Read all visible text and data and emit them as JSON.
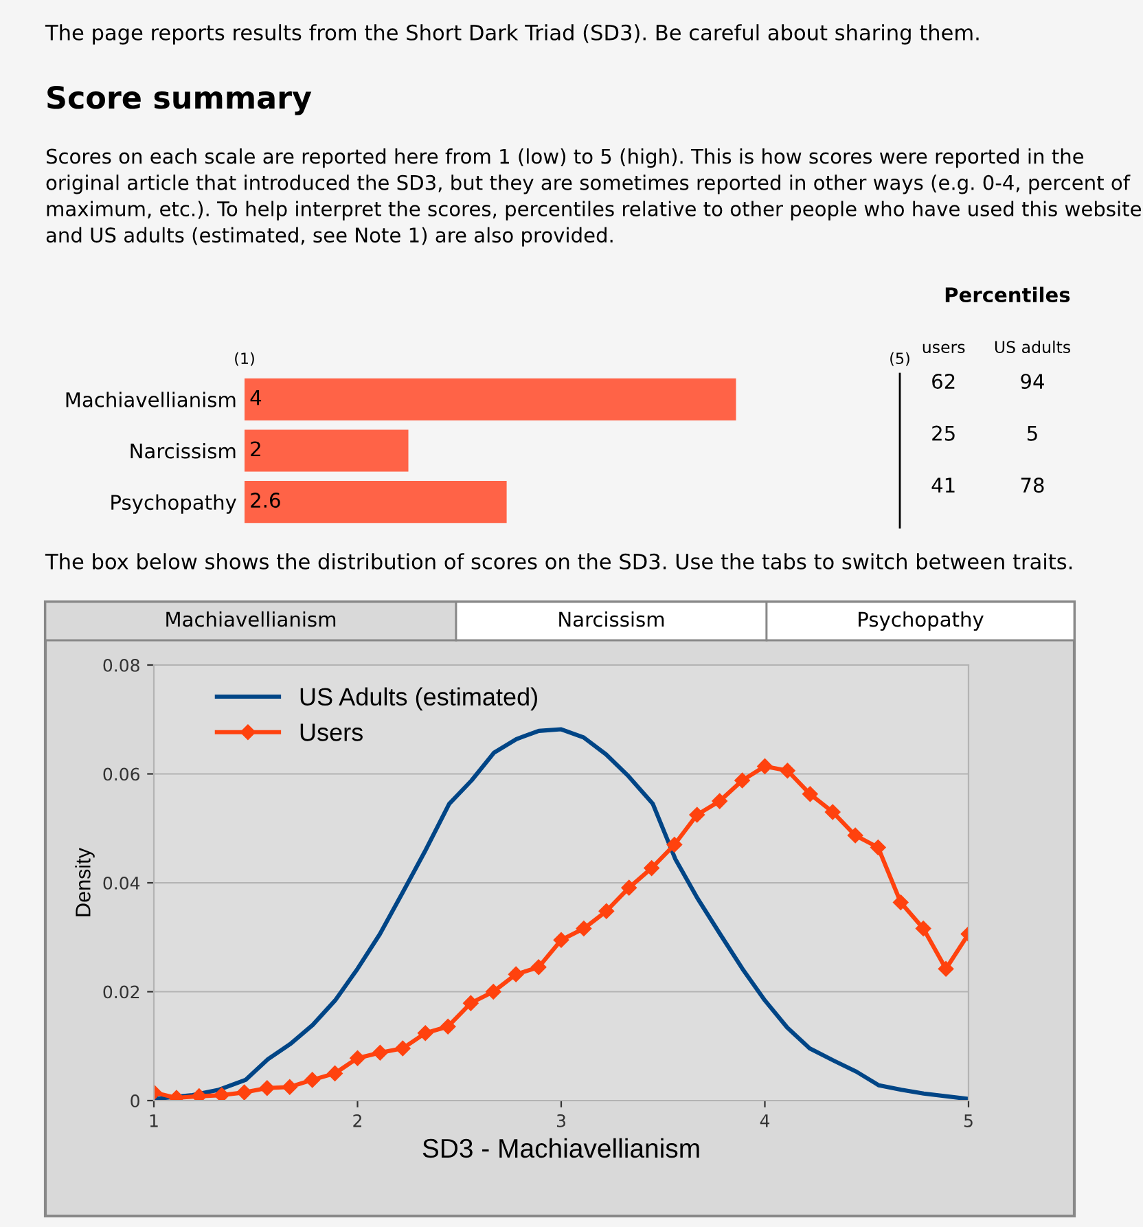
{
  "chart_data": [
    {
      "type": "bar",
      "orientation": "horizontal",
      "title": "Score summary",
      "subtitle": "Scores on each scale are reported here from 1 (low) to 5 (high). This is how scores were reported in the original article that introduced the SD3, but they are sometimes reported in other ways (e.g. 0-4, percent of maximum, etc.). To help interpret the scores, percentiles relative to other people who have used this website and US adults (estimated, see Note 1) are also provided.",
      "annotations": [
        "The page reports results from the Short Dark Triad (SD3). Be careful about sharing them.",
        "The box below shows the distribution of scores on the SD3. Use the tabs to switch between traits."
      ],
      "categories": [
        "Machiavellianism",
        "Narcissism",
        "Psychopathy"
      ],
      "values": [
        4,
        2,
        2.6
      ],
      "colors": [
        "#ff6347",
        "#ff6347",
        "#ff6347"
      ],
      "xlim": [
        1,
        5
      ],
      "xticks": [
        {
          "value": 1,
          "label": "(1)"
        },
        {
          "value": 5,
          "label": "(5)"
        }
      ],
      "data_labels": true
    },
    {
      "type": "other",
      "title": "Percentiles",
      "categories": [
        "users",
        "US adults"
      ],
      "series": [
        {
          "values": [
            62,
            94
          ]
        },
        {
          "values": [
            25,
            5
          ]
        },
        {
          "values": [
            41,
            78
          ]
        }
      ],
      "data_labels": true
    },
    {
      "type": "line",
      "xlabel": "SD3 - Machiavellianism",
      "ylabel": "Density",
      "annotations": [
        "Machiavellianism",
        "Narcissism",
        "Psychopathy"
      ],
      "xlim": [
        1,
        5
      ],
      "ylim": [
        0,
        0.08
      ],
      "xticks": [
        1,
        2,
        3,
        4,
        5
      ],
      "yticks": [
        0,
        0.02,
        0.04,
        0.06,
        0.08
      ],
      "grid": "y",
      "legend": "top left",
      "series": [
        {
          "name": "US Adults (estimated)",
          "color": "#004586",
          "marker": "none",
          "x": [
            1,
            1.19,
            1.32,
            1.45,
            1.56,
            1.67,
            1.78,
            1.89,
            2.0,
            2.11,
            2.22,
            2.33,
            2.45,
            2.56,
            2.67,
            2.78,
            2.89,
            3.0,
            3.11,
            3.22,
            3.33,
            3.45,
            3.56,
            3.67,
            3.78,
            3.89,
            4.0,
            4.11,
            4.22,
            4.34,
            4.45,
            4.56,
            4.67,
            4.78,
            5
          ],
          "values": [
            0.0003,
            0.001,
            0.002,
            0.0038,
            0.0076,
            0.0104,
            0.0139,
            0.0184,
            0.0242,
            0.0306,
            0.0381,
            0.0457,
            0.0545,
            0.0588,
            0.0639,
            0.0664,
            0.0679,
            0.0682,
            0.0667,
            0.0636,
            0.0596,
            0.0545,
            0.0444,
            0.0371,
            0.0306,
            0.0242,
            0.0184,
            0.0134,
            0.0096,
            0.0073,
            0.0053,
            0.0028,
            0.002,
            0.0013,
            0.0003
          ]
        },
        {
          "name": "Users",
          "color": "#ff420e",
          "marker": "diamond",
          "x": [
            1,
            1.111,
            1.222,
            1.333,
            1.444,
            1.556,
            1.667,
            1.778,
            1.889,
            2,
            2.111,
            2.222,
            2.333,
            2.444,
            2.556,
            2.667,
            2.778,
            2.889,
            3,
            3.111,
            3.222,
            3.333,
            3.444,
            3.556,
            3.667,
            3.778,
            3.889,
            4,
            4.111,
            4.222,
            4.333,
            4.444,
            4.556,
            4.667,
            4.778,
            4.889,
            5
          ],
          "values": [
            0.0015,
            0.0005,
            0.0008,
            0.001,
            0.0015,
            0.0023,
            0.0025,
            0.0038,
            0.005,
            0.0078,
            0.0088,
            0.0096,
            0.0124,
            0.0136,
            0.0179,
            0.02,
            0.0232,
            0.0245,
            0.0295,
            0.0316,
            0.0348,
            0.0391,
            0.0427,
            0.047,
            0.0525,
            0.055,
            0.0588,
            0.0614,
            0.0606,
            0.0563,
            0.053,
            0.0487,
            0.0465,
            0.0364,
            0.0316,
            0.0242,
            0.0306
          ]
        }
      ]
    }
  ]
}
